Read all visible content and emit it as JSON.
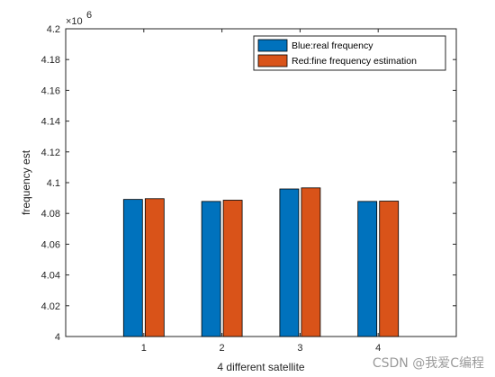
{
  "chart_data": {
    "type": "bar",
    "categories": [
      "1",
      "2",
      "3",
      "4"
    ],
    "series": [
      {
        "name": "Blue:real frequency",
        "color": "#0072BD",
        "values": [
          4089100,
          4087800,
          4095900,
          4087800
        ]
      },
      {
        "name": "Red:fine frequency estimation",
        "color": "#D95319",
        "values": [
          4089600,
          4088600,
          4096600,
          4088000
        ]
      }
    ],
    "xlabel": "4 different satellite",
    "ylabel": "frequency est",
    "ylim": [
      4000000,
      4200000
    ],
    "yticks": [
      "4",
      "4.02",
      "4.04",
      "4.06",
      "4.08",
      "4.1",
      "4.12",
      "4.14",
      "4.16",
      "4.18",
      "4.2"
    ],
    "exponent_base": "×10",
    "exponent_power": "6",
    "legend_position": "top-right",
    "grid": false
  },
  "watermark": "CSDN @我爱C编程"
}
